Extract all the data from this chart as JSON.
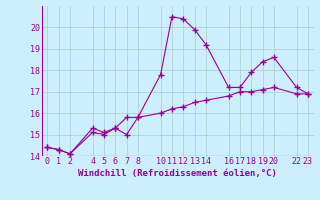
{
  "xlabel": "Windchill (Refroidissement éolien,°C)",
  "x_values": [
    0,
    1,
    2,
    4,
    5,
    6,
    7,
    8,
    10,
    11,
    12,
    13,
    14,
    16,
    17,
    18,
    19,
    20,
    22,
    23
  ],
  "y_values": [
    14.4,
    14.3,
    14.1,
    15.3,
    15.1,
    15.3,
    15.0,
    15.8,
    17.8,
    20.5,
    20.4,
    19.9,
    19.2,
    17.2,
    17.2,
    17.9,
    18.4,
    18.6,
    17.2,
    16.9
  ],
  "x_values2": [
    0,
    1,
    2,
    4,
    5,
    6,
    7,
    8,
    10,
    11,
    12,
    13,
    14,
    16,
    17,
    18,
    19,
    20,
    22,
    23
  ],
  "y_values2": [
    14.4,
    14.3,
    14.1,
    15.1,
    15.0,
    15.3,
    15.8,
    15.8,
    16.0,
    16.2,
    16.3,
    16.5,
    16.6,
    16.8,
    17.0,
    17.0,
    17.1,
    17.2,
    16.9,
    16.9
  ],
  "line_color": "#990099",
  "bg_color": "#cceeff",
  "plot_bg": "#cceeff",
  "grid_color": "#aacccc",
  "ylim": [
    14,
    21
  ],
  "xlim": [
    -0.5,
    23.5
  ],
  "yticks": [
    14,
    15,
    16,
    17,
    18,
    19,
    20
  ],
  "xticks": [
    0,
    1,
    2,
    4,
    5,
    6,
    7,
    8,
    10,
    11,
    12,
    13,
    14,
    16,
    17,
    18,
    19,
    20,
    22,
    23
  ],
  "marker": "+",
  "markersize": 4,
  "linewidth": 0.8,
  "markeredgewidth": 1.0,
  "tick_fontsize": 6,
  "label_fontsize": 6.5
}
